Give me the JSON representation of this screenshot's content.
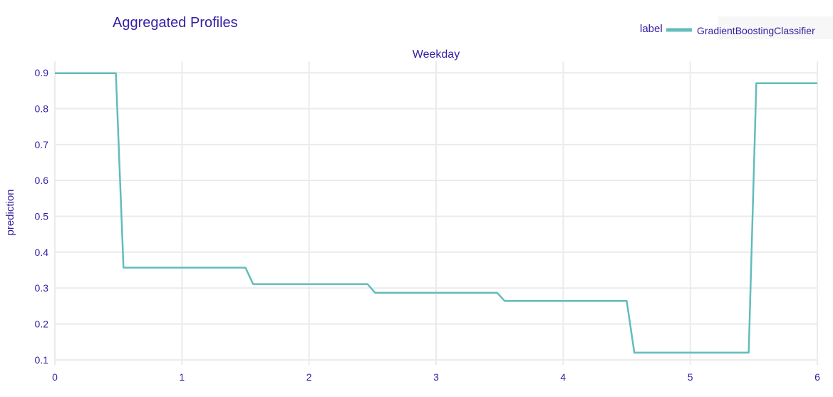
{
  "chart_data": {
    "type": "line",
    "title": "Aggregated Profiles",
    "subtitle": "Weekday",
    "xlabel": "",
    "ylabel": "prediction",
    "legend_title": "label",
    "legend_position": "top-right",
    "grid": true,
    "xlim": [
      0,
      6
    ],
    "ylim": [
      0.05,
      0.95
    ],
    "x_ticks": [
      "0",
      "1",
      "2",
      "3",
      "4",
      "5",
      "6"
    ],
    "y_ticks": [
      "0.1",
      "0.2",
      "0.3",
      "0.4",
      "0.5",
      "0.6",
      "0.7",
      "0.8",
      "0.9"
    ],
    "series": [
      {
        "name": "GradientBoostingClassifier",
        "color": "#63bcbc",
        "points": [
          [
            0,
            0.899
          ],
          [
            0.48,
            0.899
          ],
          [
            0.54,
            0.357
          ],
          [
            1.5,
            0.357
          ],
          [
            1.56,
            0.311
          ],
          [
            2.46,
            0.311
          ],
          [
            2.52,
            0.287
          ],
          [
            3.48,
            0.287
          ],
          [
            3.54,
            0.264
          ],
          [
            4.5,
            0.264
          ],
          [
            4.56,
            0.12
          ],
          [
            5.46,
            0.12
          ],
          [
            5.52,
            0.871
          ],
          [
            6,
            0.871
          ]
        ]
      }
    ]
  }
}
